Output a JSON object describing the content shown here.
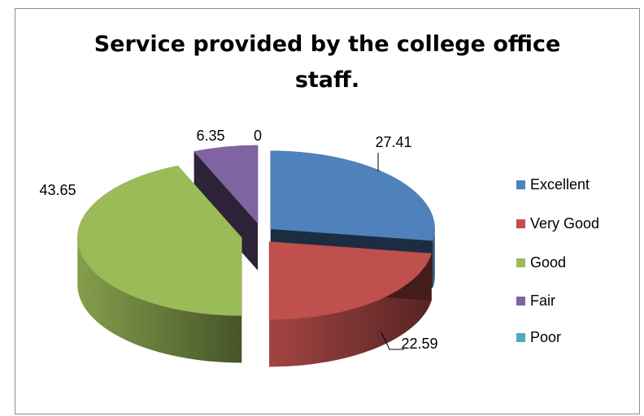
{
  "chart_data": {
    "type": "pie",
    "style": "3d-exploded",
    "title": "Service provided by the college office staff.",
    "categories": [
      "Excellent",
      "Very Good",
      "Good",
      "Fair",
      "Poor"
    ],
    "values": [
      27.41,
      22.59,
      43.65,
      6.35,
      0
    ],
    "data_labels": [
      "27.41",
      "22.59",
      "43.65",
      "6.35",
      "0"
    ],
    "colors": [
      "#4f81bd",
      "#c0504d",
      "#9bbb59",
      "#8064a2",
      "#4bacc6"
    ],
    "legend_position": "right"
  }
}
